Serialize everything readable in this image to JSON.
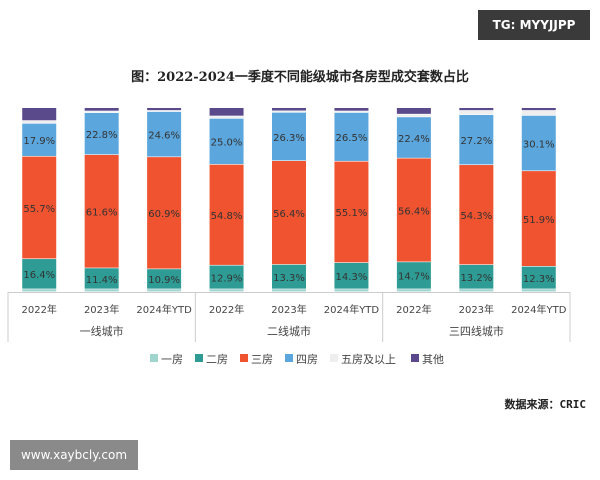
{
  "watermark_top": "TG: MYYJJPP",
  "watermark_bottom": "www.xaybcly.com",
  "source": "数据来源：CRIC",
  "chart_data": {
    "type": "bar",
    "stacked": true,
    "title": "图：2022-2024一季度不同能级城市各房型成交套数占比",
    "categories": [
      "2022年",
      "2023年",
      "2024年YTD",
      "2022年",
      "2023年",
      "2024年YTD",
      "2022年",
      "2023年",
      "2024年YTD"
    ],
    "groups": [
      {
        "label": "一线城市",
        "span": 3
      },
      {
        "label": "二线城市",
        "span": 3
      },
      {
        "label": "三四线城市",
        "span": 3
      }
    ],
    "ylim": [
      0,
      100
    ],
    "legend_position": "bottom",
    "grid": false,
    "series": [
      {
        "name": "一房",
        "color": "#9fd4cf",
        "values": [
          1.5,
          1.5,
          1.5,
          1.5,
          1.5,
          1.5,
          1.5,
          1.5,
          1.5
        ],
        "labeled": false
      },
      {
        "name": "二房",
        "color": "#2e9c95",
        "values": [
          16.4,
          11.4,
          10.9,
          12.9,
          13.3,
          14.3,
          14.7,
          13.2,
          12.3
        ],
        "labeled": true
      },
      {
        "name": "三房",
        "color": "#f0532f",
        "values": [
          55.7,
          61.6,
          60.9,
          54.8,
          56.4,
          55.1,
          56.4,
          54.3,
          51.9
        ],
        "labeled": true
      },
      {
        "name": "四房",
        "color": "#5ba6dc",
        "values": [
          17.9,
          22.8,
          24.6,
          25.0,
          26.3,
          26.5,
          22.4,
          27.2,
          30.1
        ],
        "labeled": true
      },
      {
        "name": "五房及以上",
        "color": "#eeeeee",
        "values": [
          1.5,
          0.9,
          0.6,
          1.3,
          0.8,
          0.8,
          1.5,
          2.3,
          2.7
        ],
        "labeled": false
      },
      {
        "name": "其他",
        "color": "#5a4a8c",
        "values": [
          7.0,
          1.8,
          1.5,
          4.5,
          1.7,
          1.8,
          3.5,
          1.5,
          1.5
        ],
        "labeled": false
      }
    ]
  }
}
